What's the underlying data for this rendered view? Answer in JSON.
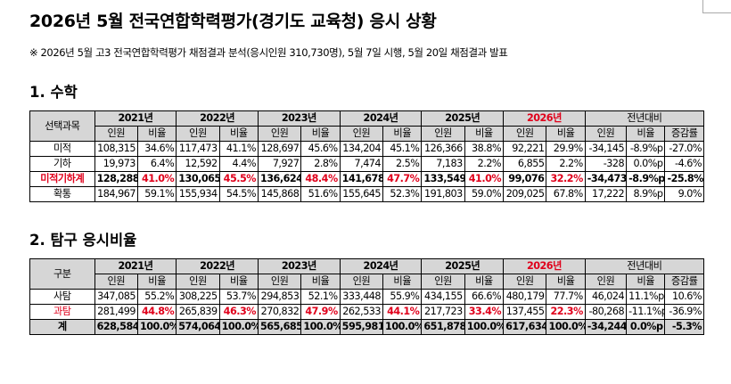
{
  "title": "2026년 5월 전국연합학력평가(경기도 교육청) 응시 상황",
  "note": "※ 2026년 5월 고3 전국연합학력평가 채점결과 분석(응시인원 310,730명), 5월 7일 시행, 5월 20일 채점결과 발표",
  "colors": {
    "highlight": "#e0001b",
    "header_bg": "#d6d6d6"
  },
  "section1": {
    "heading": "1. 수학",
    "corner": "선택과목",
    "years": [
      "2021년",
      "2022년",
      "2023년",
      "2024년",
      "2025년",
      "2026년"
    ],
    "diff_header": "전년대비",
    "sub": [
      "인원",
      "비율",
      "인원",
      "비율",
      "인원",
      "비율",
      "인원",
      "비율",
      "인원",
      "비율",
      "인원",
      "비율",
      "인원",
      "비율",
      "증감률"
    ],
    "rows": [
      {
        "label": "미적",
        "cells": [
          "108,315",
          "34.6%",
          "117,473",
          "41.1%",
          "128,697",
          "45.6%",
          "134,204",
          "45.1%",
          "126,366",
          "38.8%",
          "92,221",
          "29.9%",
          "-34,145",
          "-8.9%p",
          "-27.0%"
        ]
      },
      {
        "label": "기하",
        "cells": [
          "19,973",
          "6.4%",
          "12,592",
          "4.4%",
          "7,927",
          "2.8%",
          "7,474",
          "2.5%",
          "7,183",
          "2.2%",
          "6,855",
          "2.2%",
          "-328",
          "0.0%p",
          "-4.6%"
        ]
      },
      {
        "label": "미적기하계",
        "cells": [
          "128,288",
          "41.0%",
          "130,065",
          "45.5%",
          "136,624",
          "48.4%",
          "141,678",
          "47.7%",
          "133,549",
          "41.0%",
          "99,076",
          "32.2%",
          "-34,473",
          "-8.9%p",
          "-25.8%"
        ]
      },
      {
        "label": "확통",
        "cells": [
          "184,967",
          "59.1%",
          "155,934",
          "54.5%",
          "145,868",
          "51.6%",
          "155,645",
          "52.3%",
          "191,803",
          "59.0%",
          "209,025",
          "67.8%",
          "17,222",
          "8.9%p",
          "9.0%"
        ]
      }
    ]
  },
  "section2": {
    "heading": "2. 탐구 응시비율",
    "corner": "구분",
    "years": [
      "2021년",
      "2022년",
      "2023년",
      "2024년",
      "2025년",
      "2026년"
    ],
    "diff_header": "전년대비",
    "sub": [
      "인원",
      "비율",
      "인원",
      "비율",
      "인원",
      "비율",
      "인원",
      "비율",
      "인원",
      "비율",
      "인원",
      "비율",
      "인원",
      "비율",
      "증감률"
    ],
    "rows": [
      {
        "label": "사탐",
        "cells": [
          "347,085",
          "55.2%",
          "308,225",
          "53.7%",
          "294,853",
          "52.1%",
          "333,448",
          "55.9%",
          "434,155",
          "66.6%",
          "480,179",
          "77.7%",
          "46,024",
          "11.1%p",
          "10.6%"
        ]
      },
      {
        "label": "과탐",
        "cells": [
          "281,499",
          "44.8%",
          "265,839",
          "46.3%",
          "270,832",
          "47.9%",
          "262,533",
          "44.1%",
          "217,723",
          "33.4%",
          "137,455",
          "22.3%",
          "-80,268",
          "-11.1%p",
          "-36.9%"
        ]
      },
      {
        "label": "계",
        "cells": [
          "628,584",
          "100.0%",
          "574,064",
          "100.0%",
          "565,685",
          "100.0%",
          "595,981",
          "100.0%",
          "651,878",
          "100.0%",
          "617,634",
          "100.0%",
          "-34,244",
          "0.0%p",
          "-5.3%"
        ]
      }
    ]
  }
}
